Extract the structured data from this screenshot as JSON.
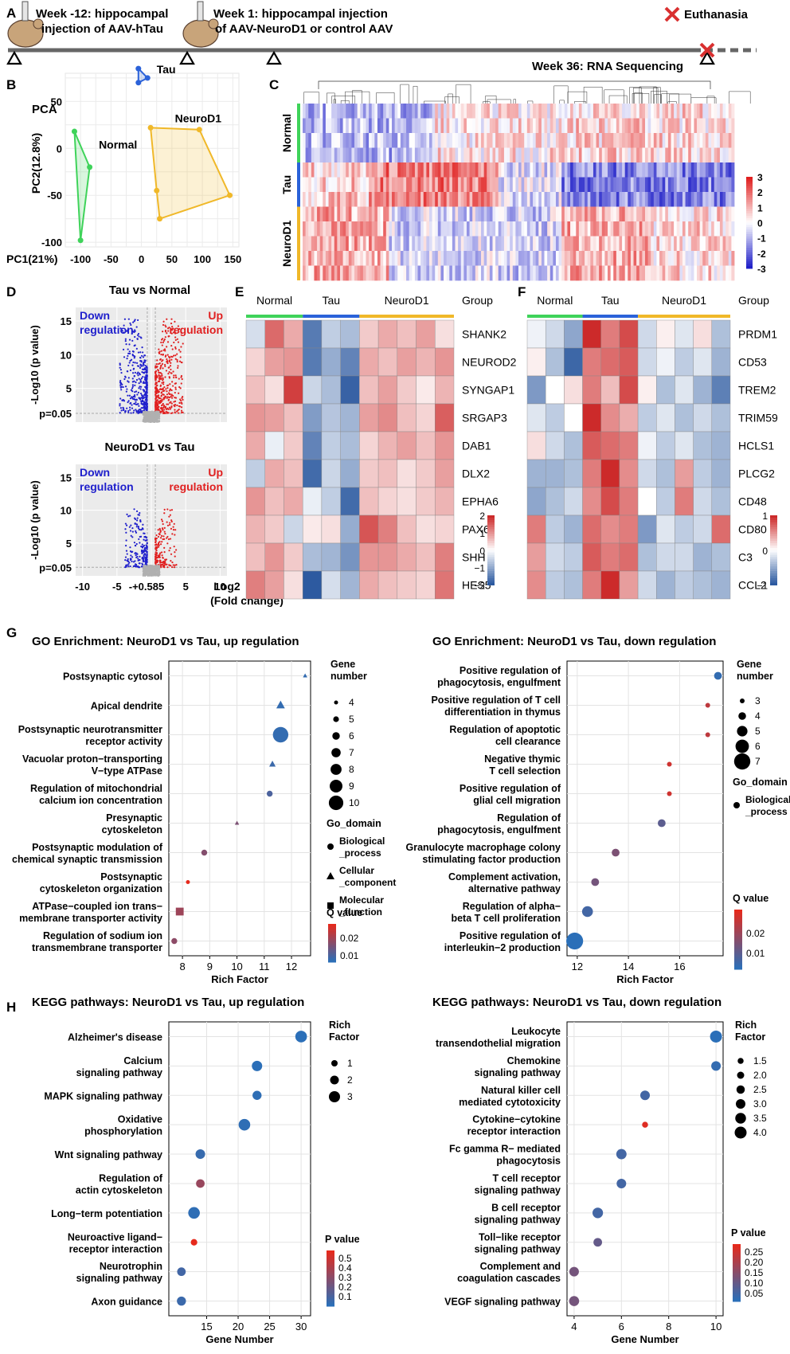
{
  "colors": {
    "normal": "#3fd35a",
    "tau": "#2b62d9",
    "neurod1": "#f0b829",
    "up": "#e02020",
    "down": "#2020cc",
    "dot_low": "#2b6fb8",
    "dot_high": "#e62a1c"
  },
  "panels": {
    "A": "A",
    "B": "B",
    "C": "C",
    "D": "D",
    "E": "E",
    "F": "F",
    "G": "G",
    "H": "H"
  },
  "timeline": {
    "week_minus12": "Week -12: hippocampal",
    "week_minus12_b": "injection of AAV-hTau",
    "week1": "Week 1: hippocampal injection",
    "week1_b": "of AAV-NeuroD1 or control AAV",
    "euthanasia": "Euthanasia",
    "week36": "Week 36: RNA Sequencing"
  },
  "chart_data": [
    {
      "panel": "B",
      "type": "scatter",
      "title": "PCA",
      "xlabel": "PC1(21%)",
      "ylabel": "PC2(12.8%)",
      "xlim": [
        -125,
        160
      ],
      "ylim": [
        -105,
        80
      ],
      "xticks": [
        "-100",
        "-50",
        "0",
        "50",
        "100",
        "150"
      ],
      "yticks": [
        "50",
        "0",
        "-50",
        "-100"
      ],
      "series": [
        {
          "name": "Normal",
          "points": [
            [
              -110,
              18
            ],
            [
              -85,
              -20
            ],
            [
              -100,
              -98
            ]
          ]
        },
        {
          "name": "Tau",
          "points": [
            [
              -5,
              85
            ],
            [
              10,
              75
            ],
            [
              -5,
              70
            ]
          ]
        },
        {
          "name": "NeuroD1",
          "points": [
            [
              15,
              22
            ],
            [
              95,
              20
            ],
            [
              145,
              -50
            ],
            [
              30,
              -75
            ],
            [
              25,
              -45
            ]
          ]
        }
      ]
    },
    {
      "panel": "C",
      "type": "heatmap",
      "row_groups": [
        "Normal",
        "Tau",
        "NeuroD1"
      ],
      "legend_ticks": [
        "3",
        "2",
        "1",
        "0",
        "-1",
        "-2",
        "-3"
      ]
    },
    {
      "panel": "D",
      "type": "scatter",
      "plots": [
        {
          "title": "Tau vs Normal",
          "down_label": "Down regulation",
          "up_label": "Up regulation"
        },
        {
          "title": "NeuroD1 vs Tau",
          "down_label": "Down regulation",
          "up_label": "Up regulation"
        }
      ],
      "ylabel": "-Log10 (p value)",
      "threshold_label": "p=0.05",
      "xticks": [
        "-10",
        "-5",
        "-+0.585",
        "5",
        "10"
      ],
      "yticks": [
        "15",
        "10",
        "5"
      ],
      "xlabel": "Log2 (Fold change)"
    },
    {
      "panel": "E",
      "type": "heatmap",
      "groups": [
        "Normal",
        "Tau",
        "NeuroD1"
      ],
      "group_header": "Group",
      "genes": [
        "SHANK2",
        "NEUROD2",
        "SYNGAP1",
        "SRGAP3",
        "DAB1",
        "DLX2",
        "EPHA6",
        "PAX6",
        "SHH",
        "HES5"
      ],
      "legend_ticks": [
        "2",
        "1",
        "0",
        "−1",
        "−2"
      ],
      "values": [
        [
          -0.4,
          1.4,
          0.8,
          -1.6,
          -0.6,
          -0.8,
          0.5,
          0.8,
          0.6,
          0.9,
          0.3
        ],
        [
          0.4,
          0.9,
          1.0,
          -1.6,
          -1.0,
          -1.5,
          0.8,
          0.6,
          0.9,
          0.7,
          1.0
        ],
        [
          0.6,
          0.3,
          1.8,
          -0.5,
          -0.8,
          -1.9,
          0.6,
          0.9,
          0.5,
          0.2,
          0.7
        ],
        [
          1.0,
          0.9,
          0.6,
          -1.2,
          -0.7,
          -0.9,
          0.9,
          1.1,
          0.6,
          0.4,
          1.5
        ],
        [
          0.8,
          -0.2,
          0.5,
          -1.5,
          -0.6,
          -0.8,
          0.4,
          0.7,
          0.9,
          0.6,
          1.0
        ],
        [
          -0.6,
          0.8,
          0.6,
          -1.8,
          -0.5,
          -1.0,
          0.5,
          0.6,
          0.3,
          0.5,
          0.9
        ],
        [
          1.0,
          0.6,
          0.8,
          -0.2,
          -0.6,
          -1.8,
          0.6,
          0.4,
          0.3,
          0.5,
          0.7
        ],
        [
          0.7,
          0.5,
          -0.5,
          0.2,
          0.3,
          -1.0,
          1.6,
          1.2,
          0.6,
          0.3,
          0.4
        ],
        [
          0.6,
          1.0,
          0.5,
          -0.8,
          -0.9,
          -1.3,
          1.0,
          1.0,
          0.8,
          0.6,
          1.2
        ],
        [
          1.2,
          0.9,
          0.3,
          -2.0,
          -0.4,
          -0.9,
          0.8,
          0.6,
          0.5,
          0.4,
          1.3
        ]
      ]
    },
    {
      "panel": "F",
      "type": "heatmap",
      "groups": [
        "Normal",
        "Tau",
        "NeuroD1"
      ],
      "group_header": "Group",
      "genes": [
        "PRDM1",
        "CD53",
        "TREM2",
        "TRIM59",
        "HCLS1",
        "PLCG2",
        "CD48",
        "CD80",
        "C3",
        "CCL2"
      ],
      "legend_ticks": [
        "1",
        "0",
        "−1"
      ],
      "values": [
        [
          -0.1,
          -0.3,
          -0.7,
          1.3,
          0.8,
          1.1,
          -0.3,
          0.1,
          -0.2,
          0.2,
          -0.5
        ],
        [
          0.1,
          -0.5,
          -1.2,
          0.8,
          0.9,
          1.0,
          -0.3,
          -0.1,
          -0.4,
          -0.2,
          -0.6
        ],
        [
          -0.8,
          0.0,
          0.2,
          0.8,
          0.4,
          1.1,
          0.1,
          -0.5,
          -0.2,
          -0.6,
          -1.0
        ],
        [
          -0.2,
          -0.4,
          0.0,
          1.5,
          0.7,
          0.5,
          -0.4,
          -0.2,
          -0.5,
          -0.3,
          -0.5
        ],
        [
          0.2,
          -0.3,
          -0.5,
          1.0,
          0.9,
          0.8,
          -0.1,
          -0.4,
          -0.2,
          -0.5,
          -0.6
        ],
        [
          -0.6,
          -0.6,
          -0.5,
          0.8,
          1.3,
          0.7,
          -0.3,
          -0.5,
          0.6,
          -0.4,
          -0.6
        ],
        [
          -0.7,
          -0.5,
          -0.3,
          0.7,
          1.1,
          0.8,
          0.0,
          -0.4,
          0.8,
          -0.3,
          -0.5
        ],
        [
          0.8,
          -0.4,
          -0.6,
          0.9,
          0.7,
          0.8,
          -0.8,
          -0.2,
          -0.4,
          -0.3,
          0.9
        ],
        [
          0.6,
          -0.3,
          -0.4,
          1.0,
          0.8,
          0.9,
          -0.5,
          -0.3,
          -0.3,
          -0.6,
          -0.5
        ],
        [
          0.7,
          -0.4,
          -0.5,
          0.8,
          1.3,
          0.6,
          -0.3,
          -0.6,
          -0.4,
          -0.5,
          -0.6
        ]
      ]
    },
    {
      "panel": "G-left",
      "type": "scatter",
      "title": "GO Enrichment: NeuroD1 vs Tau, up regulation",
      "xlabel": "Rich Factor",
      "xlim": [
        7.5,
        12.7
      ],
      "xticks": [
        8,
        9,
        10,
        11,
        12
      ],
      "size_title": "Gene number",
      "size_ticks": [
        "4",
        "5",
        "6",
        "7",
        "8",
        "9",
        "10"
      ],
      "shape_title": "Go_domain",
      "shapes": [
        "Biological _process",
        "Cellular _component",
        "Molecular _function"
      ],
      "color_title": "Q value",
      "color_ticks": [
        "0.02",
        "0.01"
      ],
      "points": [
        {
          "term": "Postsynaptic cytosol",
          "x": 12.5,
          "gene": 4,
          "domain": 1,
          "q": 0.003
        },
        {
          "term": "Apical dendrite",
          "x": 11.6,
          "gene": 6,
          "domain": 1,
          "q": 0.003
        },
        {
          "term": "Postsynaptic neurotransmitter receptor activity",
          "x": 11.6,
          "gene": 10,
          "domain": 0,
          "q": 0.003
        },
        {
          "term": "Vacuolar proton−transporting V−type ATPase",
          "x": 11.3,
          "gene": 5,
          "domain": 1,
          "q": 0.004
        },
        {
          "term": "Regulation of mitochondrial calcium ion concentration",
          "x": 11.2,
          "gene": 5,
          "domain": 0,
          "q": 0.006
        },
        {
          "term": "Presynaptic cytoskeleton",
          "x": 10.0,
          "gene": 4,
          "domain": 1,
          "q": 0.012
        },
        {
          "term": "Postsynaptic modulation of chemical synaptic transmission",
          "x": 8.8,
          "gene": 5,
          "domain": 0,
          "q": 0.013
        },
        {
          "term": "Postsynaptic cytoskeleton organization",
          "x": 8.2,
          "gene": 4,
          "domain": 0,
          "q": 0.025
        },
        {
          "term": "ATPase−coupled ion trans− membrane transporter activity",
          "x": 7.9,
          "gene": 6,
          "domain": 2,
          "q": 0.016
        },
        {
          "term": "Regulation of sodium ion transmembrane transporter",
          "x": 7.7,
          "gene": 5,
          "domain": 0,
          "q": 0.014
        }
      ]
    },
    {
      "panel": "G-right",
      "type": "scatter",
      "title": "GO Enrichment: NeuroD1 vs Tau, down regulation",
      "xlabel": "Rich Factor",
      "xlim": [
        11.6,
        17.7
      ],
      "xticks": [
        12,
        14,
        16
      ],
      "size_title": "Gene number",
      "size_ticks": [
        "3",
        "4",
        "5",
        "6",
        "7"
      ],
      "shape_title": "Go_domain",
      "shapes": [
        "Biological _process"
      ],
      "color_title": "Q value",
      "color_ticks": [
        "0.02",
        "0.01"
      ],
      "points": [
        {
          "term": "Positive regulation of phagocytosis, engulfment",
          "x": 17.5,
          "gene": 4,
          "q": 0.003
        },
        {
          "term": "Positive regulation of T cell differentiation in thymus",
          "x": 17.1,
          "gene": 3,
          "q": 0.02
        },
        {
          "term": "Regulation of apoptotic cell clearance",
          "x": 17.1,
          "gene": 3,
          "q": 0.02
        },
        {
          "term": "Negative thymic T cell selection",
          "x": 15.6,
          "gene": 3,
          "q": 0.022
        },
        {
          "term": "Positive regulation of glial cell migration",
          "x": 15.6,
          "gene": 3,
          "q": 0.022
        },
        {
          "term": "Regulation of phagocytosis, engulfment",
          "x": 15.3,
          "gene": 4,
          "q": 0.008
        },
        {
          "term": "Granulocyte macrophage colony stimulating factor production",
          "x": 13.5,
          "gene": 4,
          "q": 0.012
        },
        {
          "term": "Complement activation, alternative pathway",
          "x": 12.7,
          "gene": 4,
          "q": 0.011
        },
        {
          "term": "Regulation of alpha− beta T cell proliferation",
          "x": 12.4,
          "gene": 5,
          "q": 0.005
        },
        {
          "term": "Positive regulation of interleukin−2 production",
          "x": 11.9,
          "gene": 7,
          "q": 0.002
        }
      ]
    },
    {
      "panel": "H-left",
      "type": "scatter",
      "title": "KEGG pathways: NeuroD1 vs Tau, up regulation",
      "xlabel": "Gene Number",
      "xlim": [
        9,
        31.5
      ],
      "xticks": [
        15,
        20,
        25,
        30
      ],
      "size_title": "Rich Factor",
      "size_ticks": [
        "1",
        "2",
        "3"
      ],
      "color_title": "P value",
      "color_ticks": [
        "0.5",
        "0.4",
        "0.3",
        "0.2",
        "0.1"
      ],
      "points": [
        {
          "term": "Alzheimer's disease",
          "x": 30,
          "rich": 3,
          "p": 0.02
        },
        {
          "term": "Calcium signaling pathway",
          "x": 23,
          "rich": 2.5,
          "p": 0.02
        },
        {
          "term": "MAPK signaling pathway",
          "x": 23,
          "rich": 2,
          "p": 0.03
        },
        {
          "term": "Oxidative phosphorylation",
          "x": 21,
          "rich": 3,
          "p": 0.03
        },
        {
          "term": "Wnt signaling pathway",
          "x": 14,
          "rich": 2.2,
          "p": 0.05
        },
        {
          "term": "Regulation of actin cytoskeleton",
          "x": 14,
          "rich": 1.8,
          "p": 0.3
        },
        {
          "term": "Long−term potentiation",
          "x": 13,
          "rich": 3,
          "p": 0.03
        },
        {
          "term": "Neuroactive ligand− receptor interaction",
          "x": 13,
          "rich": 1,
          "p": 0.5
        },
        {
          "term": "Neurotrophin signaling pathway",
          "x": 11,
          "rich": 1.8,
          "p": 0.08
        },
        {
          "term": "Axon guidance",
          "x": 11,
          "rich": 2,
          "p": 0.06
        }
      ]
    },
    {
      "panel": "H-right",
      "type": "scatter",
      "title": "KEGG pathways: NeuroD1 vs Tau, down regulation",
      "xlabel": "Gene Number",
      "xlim": [
        3.7,
        10.3
      ],
      "xticks": [
        4,
        6,
        8,
        10
      ],
      "size_title": "Rich Factor",
      "size_ticks": [
        "1.5",
        "2.0",
        "2.5",
        "3.0",
        "3.5",
        "4.0"
      ],
      "color_title": "P value",
      "color_ticks": [
        "0.25",
        "0.20",
        "0.15",
        "0.10",
        "0.05"
      ],
      "points": [
        {
          "term": "Leukocyte transendothelial migration",
          "x": 10,
          "rich": 4.0,
          "p": 0.02
        },
        {
          "term": "Chemokine signaling pathway",
          "x": 10,
          "rich": 3.0,
          "p": 0.03
        },
        {
          "term": "Natural killer cell mediated cytotoxicity",
          "x": 7,
          "rich": 3.0,
          "p": 0.05
        },
        {
          "term": "Cytokine−cytokine receptor interaction",
          "x": 7,
          "rich": 1.5,
          "p": 0.24
        },
        {
          "term": "Fc gamma R− mediated phagocytosis",
          "x": 6,
          "rich": 3.3,
          "p": 0.05
        },
        {
          "term": "T cell receptor signaling pathway",
          "x": 6,
          "rich": 3.0,
          "p": 0.05
        },
        {
          "term": "B cell receptor signaling pathway",
          "x": 5,
          "rich": 3.4,
          "p": 0.05
        },
        {
          "term": "Toll−like receptor signaling pathway",
          "x": 5,
          "rich": 2.6,
          "p": 0.09
        },
        {
          "term": "Complement and coagulation cascades",
          "x": 4,
          "rich": 3.0,
          "p": 0.11
        },
        {
          "term": "VEGF signaling pathway",
          "x": 4,
          "rich": 3.2,
          "p": 0.11
        }
      ]
    }
  ]
}
